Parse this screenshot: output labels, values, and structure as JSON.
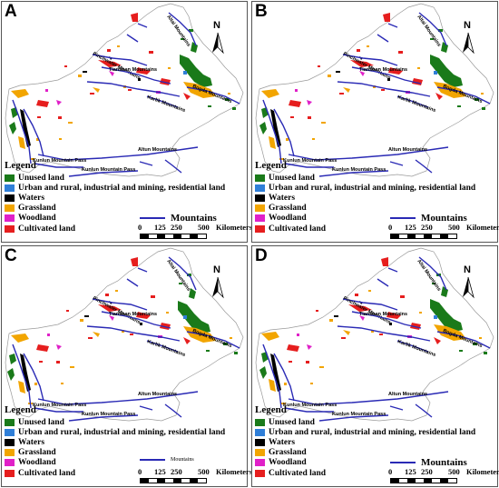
{
  "colors": {
    "unused_land": "#1a7a1a",
    "urban": "#2f7fd8",
    "waters": "#000000",
    "grassland": "#f2a500",
    "woodland": "#e020c8",
    "cultivated": "#e61e1e",
    "mountains": "#2a2ab5"
  },
  "panels": [
    {
      "letter": "A"
    },
    {
      "letter": "B"
    },
    {
      "letter": "C"
    },
    {
      "letter": "D"
    }
  ],
  "north_label": "N",
  "mountain_labels": {
    "altai": "Altai Mountains",
    "ala": "Ala Mountains",
    "tianshan_w": "Pinchwater Mountains",
    "tianshan_mid": "Tianshan Mountains",
    "bogda": "Bogda Mountains",
    "karlik": "Karlik Mountains",
    "altun": "Altun Mountains",
    "kunlun1": "Kunlun Mountain Pass",
    "kunlun2": "Kunlun Mountain Pass"
  },
  "legend": {
    "title": "Legend",
    "items": [
      {
        "label": "Unused land",
        "color_key": "unused_land"
      },
      {
        "label": "Urban and rural, industrial and mining, residential land",
        "color_key": "urban"
      },
      {
        "label": "Waters",
        "color_key": "waters"
      },
      {
        "label": "Grassland",
        "color_key": "grassland"
      },
      {
        "label": "Woodland",
        "color_key": "woodland"
      },
      {
        "label": "Cultivated land",
        "color_key": "cultivated"
      }
    ],
    "mountains_label": "Mountains"
  },
  "scale": {
    "ticks": [
      "0",
      "125",
      "250",
      "500"
    ],
    "unit": "Kilometers"
  }
}
